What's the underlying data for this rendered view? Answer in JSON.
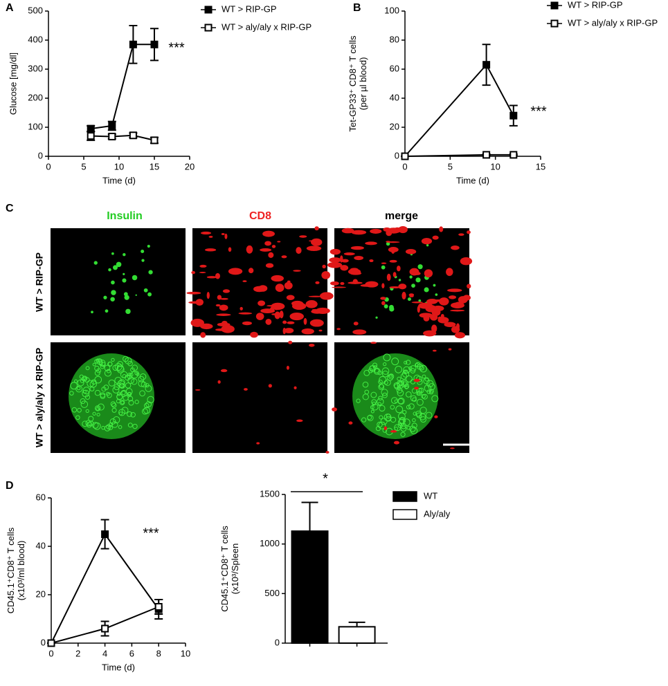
{
  "chart_data": [
    {
      "type": "line",
      "panel": "A",
      "xlabel": "Time (d)",
      "ylabel": [
        "Glucose [mg/dl]"
      ],
      "annotation": "***",
      "x": [
        6,
        9,
        12,
        15
      ],
      "xlim": [
        0,
        20
      ],
      "xticks": [
        0,
        5,
        10,
        15,
        20
      ],
      "ylim": [
        0,
        500
      ],
      "yticks": [
        0,
        100,
        200,
        300,
        400,
        500
      ],
      "series": [
        {
          "name": "WT > RIP-GP",
          "color": "#000000",
          "marker_fill": "#000000",
          "values": [
            95,
            105,
            385,
            385
          ],
          "errors": [
            10,
            15,
            65,
            55
          ]
        },
        {
          "name": "WT > aly/aly x RIP-GP",
          "color": "#000000",
          "marker_fill": "#ffffff",
          "values": [
            70,
            68,
            72,
            55
          ],
          "errors": [
            15,
            8,
            8,
            10
          ]
        }
      ]
    },
    {
      "type": "line",
      "panel": "B",
      "xlabel": "Time (d)",
      "ylabel": [
        "Tet-GP33⁺ CD8⁺ T cells",
        "(per µl blood)"
      ],
      "annotation": "***",
      "x": [
        0,
        9,
        12
      ],
      "xlim": [
        0,
        15
      ],
      "xticks": [
        0,
        5,
        10,
        15
      ],
      "ylim": [
        0,
        100
      ],
      "yticks": [
        0,
        20,
        40,
        60,
        80,
        100
      ],
      "series": [
        {
          "name": "WT > RIP-GP",
          "color": "#000000",
          "marker_fill": "#000000",
          "values": [
            0,
            63,
            28
          ],
          "errors": [
            0,
            14,
            7
          ]
        },
        {
          "name": "WT > aly/aly x RIP-GP",
          "color": "#000000",
          "marker_fill": "#ffffff",
          "values": [
            0,
            1,
            1
          ],
          "errors": [
            0,
            0.5,
            0.5
          ]
        }
      ]
    },
    {
      "type": "line",
      "panel": "D",
      "xlabel": "Time (d)",
      "ylabel": [
        "CD45.1⁺CD8⁺ T cells",
        "(x10³/ml blood)"
      ],
      "annotation": "***",
      "x": [
        0,
        4,
        8
      ],
      "xlim": [
        0,
        10
      ],
      "xticks": [
        0,
        2,
        4,
        6,
        8,
        10
      ],
      "ylim": [
        0,
        60
      ],
      "yticks": [
        0,
        20,
        40,
        60
      ],
      "series": [
        {
          "color": "#000000",
          "marker_fill": "#000000",
          "values": [
            0,
            45,
            14
          ],
          "errors": [
            0,
            6,
            4
          ]
        },
        {
          "color": "#000000",
          "marker_fill": "#ffffff",
          "values": [
            0,
            6,
            15
          ],
          "errors": [
            0,
            3,
            3
          ]
        }
      ]
    },
    {
      "type": "bar",
      "ylabel": [
        "CD45.1⁺CD8⁺ T cells",
        "(x10³/Spleen"
      ],
      "annotation": "*",
      "ylim": [
        0,
        1500
      ],
      "yticks": [
        0,
        500,
        1000,
        1500
      ],
      "series": [
        {
          "name": "WT",
          "color": "#000000",
          "values": [
            1130
          ],
          "errors": [
            290
          ]
        },
        {
          "name": "Aly/aly",
          "color": "#ffffff",
          "values": [
            165
          ],
          "errors": [
            45
          ]
        }
      ]
    }
  ],
  "image_panel": {
    "panel": "C",
    "columns": [
      "Insulin",
      "CD8",
      "merge"
    ],
    "rows": [
      "WT > RIP-GP",
      "WT > aly/aly x RIP-GP"
    ]
  }
}
